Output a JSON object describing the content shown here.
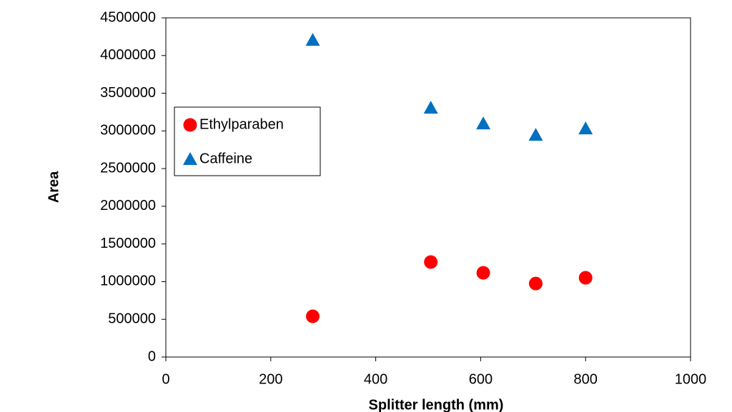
{
  "chart_data": {
    "type": "scatter",
    "x_label": "Splitter length (mm)",
    "y_label": "Area",
    "series": [
      {
        "name": "Ethylparaben",
        "color": "#ff0000",
        "marker": "circle",
        "x": [
          280,
          505,
          605,
          705,
          800
        ],
        "values": [
          540000,
          1260000,
          1117000,
          975000,
          1051000
        ]
      },
      {
        "name": "Caffeine",
        "color": "#0070c0",
        "marker": "triangle",
        "x": [
          280,
          505,
          605,
          705,
          800
        ],
        "values": [
          4205000,
          3305000,
          3097000,
          2945000,
          3030000
        ]
      }
    ],
    "xlim": [
      0,
      1000
    ],
    "xticks": [
      0,
      200,
      400,
      600,
      800,
      1000
    ],
    "ylim": [
      0,
      4500000
    ],
    "yticks": [
      0,
      500000,
      1000000,
      1500000,
      2000000,
      2500000,
      3000000,
      3500000,
      4000000,
      4500000
    ],
    "legend": "left",
    "grid": false
  }
}
